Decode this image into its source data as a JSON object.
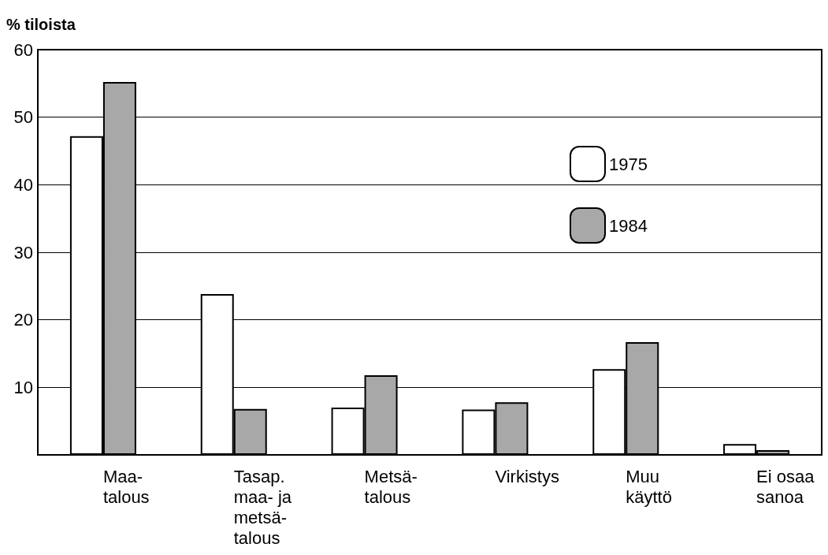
{
  "chart_data": {
    "type": "bar",
    "ylabel": "% tiloista",
    "categories": [
      "Maa-\ntalous",
      "Tasap.\nmaa- ja\nmetsä-\ntalous",
      "Metsä-\ntalous",
      "Virkistys",
      "Muu\nkäyttö",
      "Ei osaa\nsanoa"
    ],
    "series": [
      {
        "name": "1975",
        "color": "#ffffff",
        "values": [
          47.2,
          23.8,
          7.0,
          6.7,
          12.7,
          1.6
        ]
      },
      {
        "name": "1984",
        "color": "#a8a8a8",
        "values": [
          55.2,
          6.8,
          11.8,
          7.8,
          16.7,
          0.7
        ]
      }
    ],
    "ylim": [
      0,
      60
    ],
    "yticks": [
      {
        "value": 0,
        "label": null
      },
      10,
      20,
      30,
      40,
      50,
      60
    ],
    "grid": "y",
    "legend": "top right"
  }
}
